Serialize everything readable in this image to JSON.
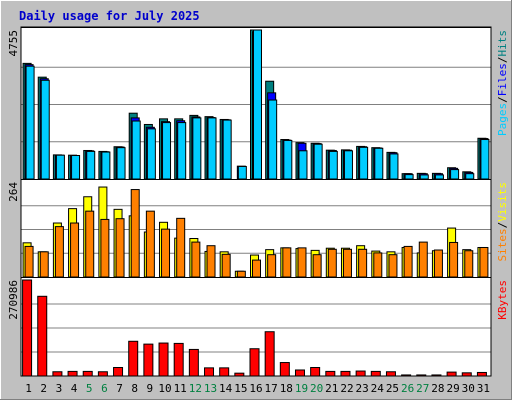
{
  "chart_data": {
    "type": "bar",
    "title": "Daily usage for July 2025",
    "categories": [
      "1",
      "2",
      "3",
      "4",
      "5",
      "6",
      "7",
      "8",
      "9",
      "10",
      "11",
      "12",
      "13",
      "14",
      "15",
      "16",
      "17",
      "18",
      "19",
      "20",
      "21",
      "22",
      "23",
      "24",
      "25",
      "26",
      "27",
      "28",
      "29",
      "30",
      "31"
    ],
    "weekend_days": [
      "5",
      "6",
      "12",
      "13",
      "19",
      "20",
      "26",
      "27"
    ],
    "panels": [
      {
        "ymax_label": "4755",
        "ymax": 4755,
        "legend": [
          "Pages",
          "/",
          "Files",
          "/",
          "Hits"
        ],
        "series": [
          {
            "name": "Hits",
            "color": "#008080",
            "values": [
              3690,
              3250,
              770,
              760,
              910,
              880,
              1030,
              2100,
              1740,
              1920,
              1920,
              2030,
              1990,
              1900,
              0,
              4755,
              3120,
              1260,
              1160,
              1140,
              920,
              930,
              1040,
              1000,
              850,
              170,
              180,
              180,
              360,
              230,
              1300
            ]
          },
          {
            "name": "Files",
            "color": "#0000ff",
            "values": [
              3650,
              3200,
              760,
              750,
              900,
              870,
              1020,
              1950,
              1650,
              1830,
              1860,
              1980,
              1960,
              1890,
              410,
              4700,
              2750,
              1240,
              1140,
              1130,
              910,
              920,
              1030,
              990,
              840,
              170,
              170,
              170,
              340,
              210,
              1290
            ]
          },
          {
            "name": "Pages",
            "color": "#00ccff",
            "values": [
              3600,
              3150,
              760,
              750,
              880,
              860,
              1000,
              1850,
              1600,
              1800,
              1800,
              1950,
              1950,
              1880,
              400,
              4755,
              2520,
              1230,
              900,
              1110,
              880,
              900,
              1010,
              980,
              800,
              140,
              130,
              130,
              300,
              170,
              1260
            ]
          }
        ]
      },
      {
        "ymax_label": "264",
        "ymax": 264,
        "legend": [
          "Sites",
          "/",
          "Visits"
        ],
        "series": [
          {
            "name": "Visits",
            "color": "#ffff00",
            "values": [
              95,
              70,
              150,
              190,
              223,
              250,
              188,
              170,
              125,
              152,
              108,
              107,
              71,
              70,
              16,
              61,
              76,
              81,
              79,
              74,
              80,
              80,
              87,
              72,
              70,
              82,
              67,
              73,
              136,
              76,
              82
            ]
          },
          {
            "name": "Sites",
            "color": "#ff8000",
            "values": [
              85,
              70,
              140,
              150,
              183,
              160,
              162,
              243,
              183,
              133,
              163,
              97,
              87,
              63,
              16,
              47,
              62,
              81,
              81,
              62,
              77,
              77,
              77,
              67,
              62,
              85,
              97,
              75,
              96,
              73,
              82
            ]
          }
        ]
      },
      {
        "ymax_label": "270986",
        "ymax": 270986,
        "legend": [
          "KBytes"
        ],
        "series": [
          {
            "name": "KBytes",
            "color": "#ff0000",
            "values": [
              270986,
              225000,
              12000,
              13000,
              13000,
              12000,
              24000,
              98000,
              90000,
              93000,
              92000,
              75000,
              23000,
              23000,
              8000,
              77000,
              125000,
              38000,
              17000,
              24000,
              13000,
              13000,
              14000,
              13000,
              12000,
              3000,
              3000,
              3000,
              11000,
              9000,
              10000
            ]
          }
        ]
      }
    ],
    "colors": {
      "background": "#c0c0c0",
      "plot_bg": "#ffffff",
      "title": "#0000cc",
      "weekday_tick": "#000000",
      "weekend_tick": "#008040",
      "legend_pages": "#00ccff",
      "legend_files": "#0000ff",
      "legend_hits": "#008080",
      "legend_sites": "#ff8000",
      "legend_visits": "#ffff00",
      "legend_kbytes": "#ff0000",
      "separator": "#000000"
    }
  }
}
